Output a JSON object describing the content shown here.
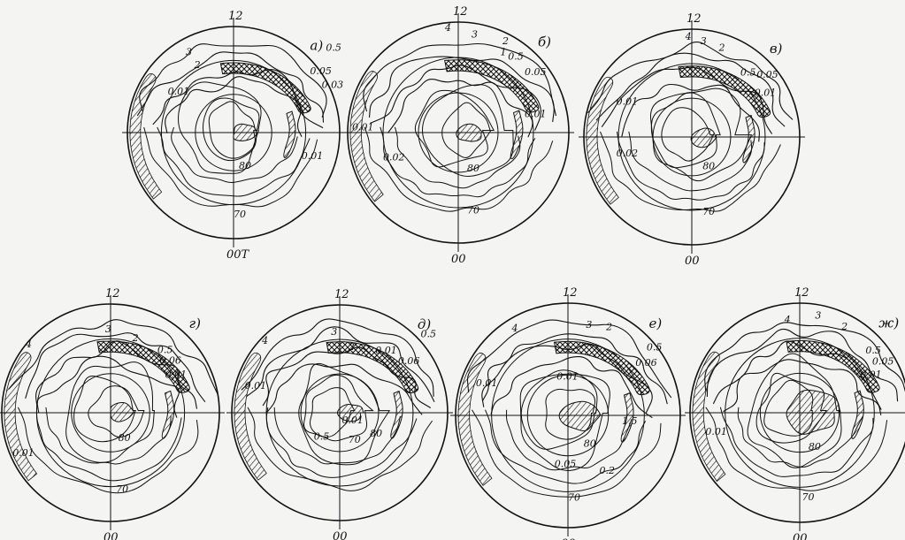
{
  "figure": {
    "panels": [
      {
        "letter": "а)",
        "top_label": "12",
        "bottom_label": "00Т",
        "contours": [
          "3",
          "2",
          "0.5",
          "0.05",
          "0.03",
          "0.01",
          "0.01",
          "80",
          "70"
        ]
      },
      {
        "letter": "б)",
        "top_label": "12",
        "bottom_label": "00",
        "contours": [
          "4",
          "3",
          "2",
          "1",
          "0.5",
          "0.05",
          "0.01",
          "0.01",
          "0.02",
          "80",
          "70"
        ]
      },
      {
        "letter": "в)",
        "top_label": "12",
        "bottom_label": "00",
        "contours": [
          "4",
          "3",
          "2",
          "0.5",
          "0.05",
          "0.01",
          "0.01",
          "0.02",
          "80",
          "70"
        ]
      },
      {
        "letter": "г)",
        "top_label": "12",
        "bottom_label": "00",
        "contours": [
          "4",
          "3",
          "2",
          "0.5",
          "0.06",
          "0.01",
          "0.01",
          "80",
          "70"
        ]
      },
      {
        "letter": "д)",
        "top_label": "12",
        "bottom_label": "00",
        "contours": [
          "4",
          "3",
          "2",
          "0.5",
          "0.06",
          "0.01",
          "0.01",
          "0.01",
          "0.5",
          "80",
          "70"
        ]
      },
      {
        "letter": "е)",
        "top_label": "12",
        "bottom_label": "00",
        "contours": [
          "4",
          "3",
          "2",
          "0.5",
          "0.06",
          "0.01",
          "0.01",
          "1.5",
          "0.05",
          "0.2",
          "80",
          "70"
        ]
      },
      {
        "letter": "ж)",
        "top_label": "12",
        "bottom_label": "00",
        "contours": [
          "4",
          "3",
          "2",
          "0.5",
          "0.05",
          "0.01",
          "0.01",
          "80",
          "70"
        ]
      }
    ]
  }
}
